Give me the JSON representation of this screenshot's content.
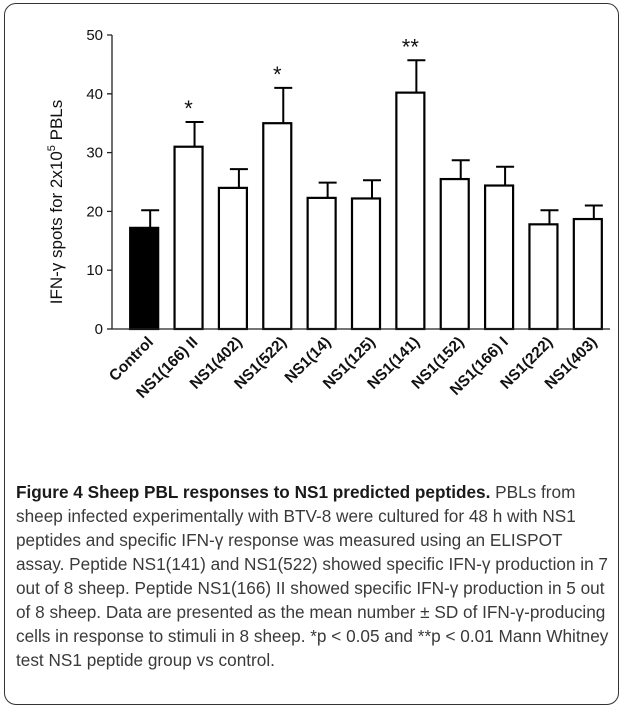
{
  "chart_data": {
    "type": "bar",
    "ylabel": "IFN-γ spots for 2x10⁵ PBLs",
    "ylabel_main": "IFN-γ spots for 2x10",
    "ylabel_exp": "5",
    "ylabel_tail": " PBLs",
    "ylim": [
      0,
      50
    ],
    "yticks": [
      0,
      10,
      20,
      30,
      40,
      50
    ],
    "grid": false,
    "categories": [
      "Control",
      "NS1(166) II",
      "NS1(402)",
      "NS1(522)",
      "NS1(14)",
      "NS1(125)",
      "NS1(141)",
      "NS1(152)",
      "NS1(166) I",
      "NS1(222)",
      "NS1(403)"
    ],
    "values": [
      17.2,
      31.0,
      24.0,
      35.0,
      22.3,
      22.2,
      40.2,
      25.5,
      24.4,
      17.8,
      18.7
    ],
    "sd": [
      3.0,
      4.2,
      3.2,
      6.0,
      2.6,
      3.1,
      5.5,
      3.2,
      3.2,
      2.4,
      2.3
    ],
    "significance": [
      "",
      "*",
      "",
      "*",
      "",
      "",
      "**",
      "",
      "",
      "",
      ""
    ],
    "bar_fill": [
      "#000000",
      "#ffffff",
      "#ffffff",
      "#ffffff",
      "#ffffff",
      "#ffffff",
      "#ffffff",
      "#ffffff",
      "#ffffff",
      "#ffffff",
      "#ffffff"
    ],
    "bar_stroke": "#000000"
  },
  "caption": {
    "title": "Figure 4 Sheep PBL responses to NS1 predicted peptides.",
    "body": " PBLs from sheep infected experimentally with BTV-8 were cultured for 48 h with NS1 peptides and specific IFN-γ response was measured using an ELISPOT assay. Peptide NS1(141) and NS1(522) showed specific IFN-γ production in 7 out of 8 sheep. Peptide NS1(166) II showed specific IFN-γ production in 5 out of 8 sheep. Data are presented as the mean number ± SD of IFN-γ-producing cells in response to stimuli in 8 sheep. *p < 0.05 and **p < 0.01 Mann Whitney test NS1 peptide group vs control."
  }
}
